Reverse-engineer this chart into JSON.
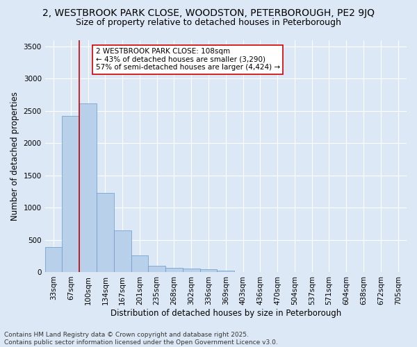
{
  "title_line1": "2, WESTBROOK PARK CLOSE, WOODSTON, PETERBOROUGH, PE2 9JQ",
  "title_line2": "Size of property relative to detached houses in Peterborough",
  "xlabel": "Distribution of detached houses by size in Peterborough",
  "ylabel": "Number of detached properties",
  "categories": [
    "33sqm",
    "67sqm",
    "100sqm",
    "134sqm",
    "167sqm",
    "201sqm",
    "235sqm",
    "268sqm",
    "302sqm",
    "336sqm",
    "369sqm",
    "403sqm",
    "436sqm",
    "470sqm",
    "504sqm",
    "537sqm",
    "571sqm",
    "604sqm",
    "638sqm",
    "672sqm",
    "705sqm"
  ],
  "values": [
    390,
    2420,
    2620,
    1230,
    640,
    260,
    100,
    65,
    55,
    40,
    25,
    0,
    0,
    0,
    0,
    0,
    0,
    0,
    0,
    0,
    0
  ],
  "bar_color": "#b8d0ea",
  "bar_edge_color": "#6699cc",
  "vline_x_index": 2,
  "vline_color": "#cc0000",
  "ylim": [
    0,
    3600
  ],
  "yticks": [
    0,
    500,
    1000,
    1500,
    2000,
    2500,
    3000,
    3500
  ],
  "annotation_text": "2 WESTBROOK PARK CLOSE: 108sqm\n← 43% of detached houses are smaller (3,290)\n57% of semi-detached houses are larger (4,424) →",
  "annotation_box_color": "#ffffff",
  "annotation_box_edge": "#cc0000",
  "footer1": "Contains HM Land Registry data © Crown copyright and database right 2025.",
  "footer2": "Contains public sector information licensed under the Open Government Licence v3.0.",
  "bg_color": "#dce8f5",
  "grid_color": "#ffffff",
  "title_fontsize": 10,
  "subtitle_fontsize": 9,
  "axis_label_fontsize": 8.5,
  "tick_fontsize": 7.5,
  "annotation_fontsize": 7.5,
  "footer_fontsize": 6.5
}
